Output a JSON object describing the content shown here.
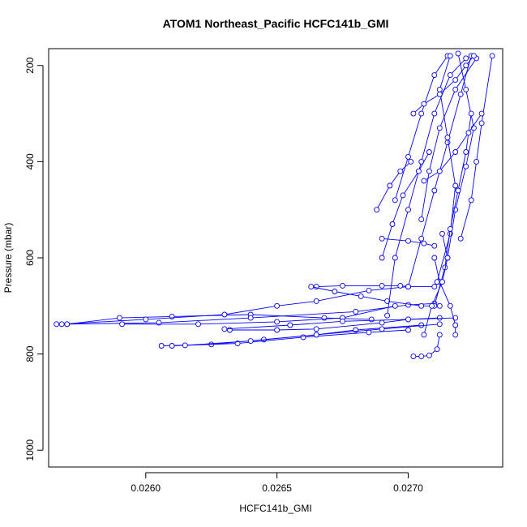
{
  "chart_data": {
    "type": "line",
    "title": "ATOM1 Northeast_Pacific HCFC141b_GMI",
    "xlabel": "HCFC141b_GMI",
    "ylabel": "Pressure (mbar)",
    "xlim": [
      0.02563,
      0.02736
    ],
    "ylim": [
      1035,
      165
    ],
    "y_reversed": true,
    "x_ticks": [
      0.026,
      0.0265,
      0.027
    ],
    "x_tick_labels": [
      "0.0260",
      "0.0265",
      "0.0270"
    ],
    "y_ticks": [
      200,
      400,
      600,
      800,
      1000
    ],
    "y_tick_labels": [
      "200",
      "400",
      "600",
      "800",
      "1000"
    ],
    "grid": false,
    "series_color": "#0000ff",
    "marker": "open-circle",
    "series": [
      {
        "x": [
          0.02566,
          0.0257,
          0.0259,
          0.0261,
          0.0264,
          0.02668,
          0.02686
        ],
        "y": [
          738,
          738,
          725,
          722,
          718,
          725,
          728
        ]
      },
      {
        "x": [
          0.02568,
          0.026,
          0.0263,
          0.0265,
          0.02665,
          0.02685,
          0.027
        ],
        "y": [
          738,
          728,
          718,
          700,
          690,
          668,
          660
        ]
      },
      {
        "x": [
          0.0257,
          0.02605,
          0.0264,
          0.0268,
          0.027,
          0.0271
        ],
        "y": [
          738,
          735,
          725,
          712,
          698,
          695
        ]
      },
      {
        "x": [
          0.02591,
          0.0262,
          0.0265,
          0.02675,
          0.02695
        ],
        "y": [
          738,
          738,
          733,
          725,
          700
        ]
      },
      {
        "x": [
          0.02606,
          0.02625,
          0.02645,
          0.02665,
          0.0268,
          0.02705
        ],
        "y": [
          783,
          780,
          770,
          760,
          750,
          740
        ]
      },
      {
        "x": [
          0.0261,
          0.02635,
          0.0266,
          0.02685,
          0.027
        ],
        "y": [
          783,
          778,
          765,
          755,
          750
        ]
      },
      {
        "x": [
          0.02615,
          0.0264,
          0.02665,
          0.0269,
          0.02712
        ],
        "y": [
          782,
          773,
          760,
          748,
          738
        ]
      },
      {
        "x": [
          0.02632,
          0.0265,
          0.02665,
          0.0269,
          0.027,
          0.02712
        ],
        "y": [
          750,
          750,
          748,
          735,
          728,
          725
        ]
      },
      {
        "x": [
          0.0263,
          0.02655,
          0.02675,
          0.027,
          0.02718
        ],
        "y": [
          748,
          740,
          732,
          728,
          725
        ]
      },
      {
        "x": [
          0.02665,
          0.02675,
          0.0269,
          0.02697,
          0.027,
          0.0271
        ],
        "y": [
          660,
          658,
          658,
          658,
          660,
          660
        ]
      },
      {
        "x": [
          0.02663,
          0.02672,
          0.02682,
          0.02692,
          0.02705,
          0.02712
        ],
        "y": [
          660,
          670,
          680,
          690,
          700,
          700
        ]
      },
      {
        "x": [
          0.02702,
          0.02705,
          0.02708,
          0.02711,
          0.02712
        ],
        "y": [
          805,
          805,
          803,
          790,
          760
        ]
      },
      {
        "x": [
          0.0269,
          0.027,
          0.02706,
          0.0271
        ],
        "y": [
          560,
          565,
          570,
          575
        ]
      },
      {
        "x": [
          0.0271,
          0.02712,
          0.02716,
          0.02718,
          0.02718
        ],
        "y": [
          600,
          650,
          700,
          740,
          760
        ]
      },
      {
        "x": [
          0.02692,
          0.02695,
          0.027,
          0.02705,
          0.0271,
          0.02716,
          0.02722
        ],
        "y": [
          720,
          600,
          500,
          400,
          300,
          220,
          185
        ]
      },
      {
        "x": [
          0.027,
          0.02705,
          0.0271,
          0.02715,
          0.0272,
          0.02724
        ],
        "y": [
          660,
          560,
          460,
          360,
          260,
          180
        ]
      },
      {
        "x": [
          0.02705,
          0.02708,
          0.02712,
          0.02718,
          0.02726
        ],
        "y": [
          520,
          420,
          330,
          250,
          185
        ]
      },
      {
        "x": [
          0.02695,
          0.027,
          0.02705,
          0.0271,
          0.02715
        ],
        "y": [
          480,
          390,
          300,
          220,
          180
        ]
      },
      {
        "x": [
          0.02711,
          0.02716,
          0.02718,
          0.02715,
          0.02712,
          0.02716
        ],
        "y": [
          650,
          550,
          450,
          350,
          250,
          180
        ]
      },
      {
        "x": [
          0.02715,
          0.02718,
          0.02722,
          0.02725,
          0.02722,
          0.02719
        ],
        "y": [
          600,
          500,
          410,
          330,
          250,
          175
        ]
      },
      {
        "x": [
          0.02702,
          0.02706,
          0.02712,
          0.02718,
          0.02722,
          0.02725
        ],
        "y": [
          300,
          280,
          260,
          230,
          200,
          180
        ]
      },
      {
        "x": [
          0.0272,
          0.02724,
          0.02726,
          0.02728,
          0.02732
        ],
        "y": [
          560,
          480,
          400,
          320,
          180
        ]
      },
      {
        "x": [
          0.0271,
          0.02714,
          0.02716,
          0.02719,
          0.02722,
          0.02724
        ],
        "y": [
          700,
          620,
          540,
          460,
          380,
          300
        ]
      },
      {
        "x": [
          0.0269,
          0.02694,
          0.02698,
          0.02704,
          0.02708
        ],
        "y": [
          600,
          530,
          470,
          420,
          380
        ]
      },
      {
        "x": [
          0.02706,
          0.02709,
          0.02713,
          0.02715,
          0.02713
        ],
        "y": [
          760,
          700,
          650,
          600,
          550
        ]
      },
      {
        "x": [
          0.02688,
          0.02693,
          0.02697,
          0.02701
        ],
        "y": [
          500,
          450,
          420,
          400
        ]
      },
      {
        "x": [
          0.02706,
          0.02712,
          0.02718,
          0.02723,
          0.02728
        ],
        "y": [
          440,
          420,
          380,
          340,
          300
        ]
      }
    ]
  }
}
